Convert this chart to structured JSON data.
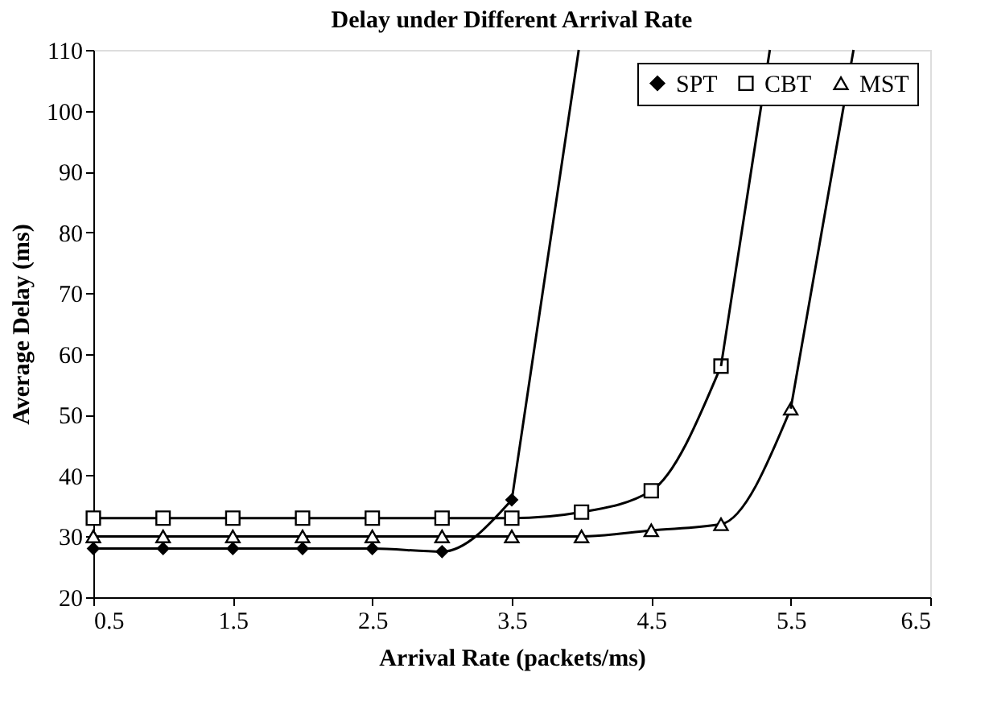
{
  "chart_data": {
    "type": "line",
    "title": "Delay under Different Arrival Rate",
    "xlabel": "Arrival Rate (packets/ms)",
    "ylabel": "Average Delay (ms)",
    "x": [
      0.5,
      1.0,
      1.5,
      2.0,
      2.5,
      3.0,
      3.5,
      4.0,
      4.5,
      5.0,
      5.5
    ],
    "series": [
      {
        "name": "SPT",
        "color": "#000000",
        "marker": "diamond",
        "values": [
          28,
          28,
          28,
          28,
          28,
          27.5,
          36,
          null,
          null,
          null,
          null
        ]
      },
      {
        "name": "CBT",
        "color": "#000000",
        "marker": "square",
        "values": [
          33,
          33,
          33,
          33,
          33,
          33,
          33,
          34,
          37.5,
          58,
          null
        ]
      },
      {
        "name": "MST",
        "color": "#000000",
        "marker": "triangle",
        "values": [
          30,
          30,
          30,
          30,
          30,
          30,
          30,
          30,
          31,
          32,
          51
        ]
      },
      {
        "color": "#000000",
        "marker": "none",
        "x": [
          3.5,
          3.98
        ],
        "values": [
          36,
          110
        ]
      },
      {
        "color": "#000000",
        "marker": "none",
        "x": [
          5.0,
          5.35
        ],
        "values": [
          58,
          110
        ]
      },
      {
        "color": "#000000",
        "marker": "none",
        "x": [
          5.5,
          5.95
        ],
        "values": [
          51,
          110
        ]
      }
    ],
    "xlim": [
      0.5,
      6.5
    ],
    "xticks": [
      0.5,
      1.5,
      2.5,
      3.5,
      4.5,
      5.5,
      6.5
    ],
    "ylim": [
      20,
      110
    ],
    "yticks": [
      20,
      30,
      40,
      50,
      60,
      70,
      80,
      90,
      100,
      110
    ],
    "grid": false,
    "legend": "top right",
    "line_style": "solid"
  }
}
